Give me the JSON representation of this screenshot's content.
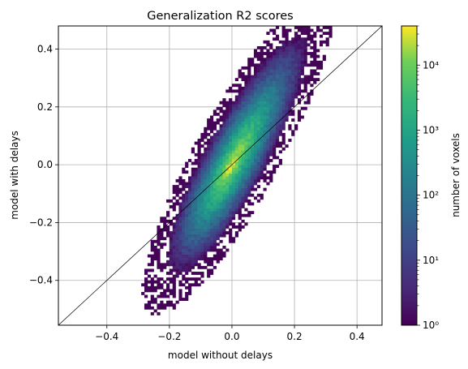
{
  "chart_data": {
    "type": "heatmap",
    "title": "Generalization R2 scores",
    "xlabel": "model without delays",
    "ylabel": "model with delays",
    "xlim": [
      -0.555,
      0.48
    ],
    "ylim": [
      -0.555,
      0.48
    ],
    "x_ticks": [
      -0.4,
      -0.2,
      0.0,
      0.2,
      0.4
    ],
    "y_ticks": [
      -0.4,
      -0.2,
      0.0,
      0.2,
      0.4
    ],
    "x_tick_labels": [
      "−0.4",
      "−0.2",
      "0.0",
      "0.2",
      "0.4"
    ],
    "y_tick_labels": [
      "−0.4",
      "−0.2",
      "0.0",
      "0.2",
      "0.4"
    ],
    "grid": true,
    "reference_line": "y = x",
    "colormap": "viridis",
    "colorbar": {
      "label": "number of voxels",
      "scale": "log",
      "min": 1,
      "max": 40000,
      "ticks": [
        1,
        10,
        100,
        1000,
        10000
      ],
      "tick_labels": [
        "10⁰",
        "10¹",
        "10²",
        "10³",
        "10⁴"
      ]
    },
    "density_model": {
      "bin_width": 0.01,
      "peak_count": 40000,
      "ridge_slope": 2.0,
      "ridge_center": [
        0.0,
        0.0
      ]
    },
    "colors": {
      "low": "#440154",
      "mid": "#21918c",
      "high": "#fde725",
      "grid": "#b0b0b0"
    }
  }
}
